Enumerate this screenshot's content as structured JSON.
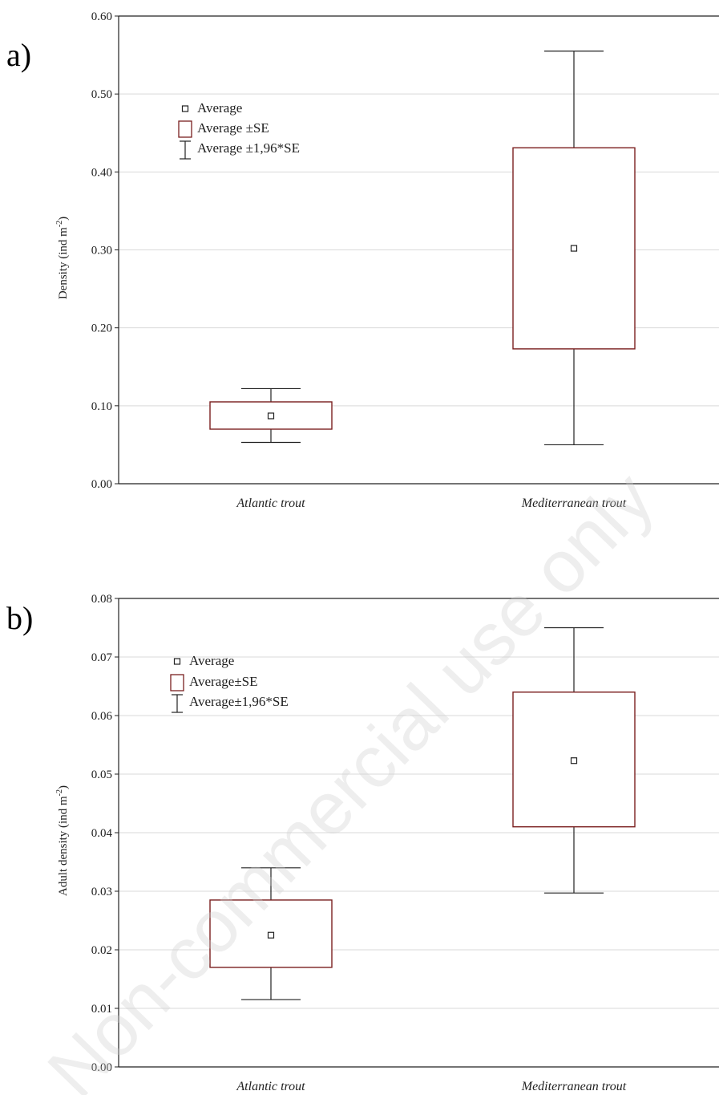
{
  "watermark": "Non-commercial use only",
  "chart_data": [
    {
      "type": "box",
      "panel_label": "a)",
      "ylabel": "Density (ind m",
      "ylabel_sup": "-2",
      "ylabel_end": ")",
      "ylim": [
        0,
        0.6
      ],
      "yticks": [
        "0.00",
        "0.10",
        "0.20",
        "0.30",
        "0.40",
        "0.50",
        "0.60"
      ],
      "ytick_values": [
        0,
        0.1,
        0.2,
        0.3,
        0.4,
        0.5,
        0.6
      ],
      "grid": true,
      "categories": [
        "Atlantic trout",
        "Mediterranean trout"
      ],
      "series": [
        {
          "category": "Atlantic trout",
          "average": 0.087,
          "se_low": 0.07,
          "se_high": 0.105,
          "ci_low": 0.053,
          "ci_high": 0.122
        },
        {
          "category": "Mediterranean trout",
          "average": 0.302,
          "se_low": 0.173,
          "se_high": 0.431,
          "ci_low": 0.05,
          "ci_high": 0.555
        }
      ],
      "legend": {
        "placement": "top-left",
        "average": "Average",
        "se": "Average ±SE",
        "ci": "Average ±1,96*SE"
      },
      "colors": {
        "box": "#7a1f1f",
        "whisker": "#222222",
        "grid": "#d9d9d9"
      }
    },
    {
      "type": "box",
      "panel_label": "b)",
      "ylabel": "Adult density (ind m",
      "ylabel_sup": "-2",
      "ylabel_end": ")",
      "ylim": [
        0,
        0.08
      ],
      "yticks": [
        "0.00",
        "0.01",
        "0.02",
        "0.03",
        "0.04",
        "0.05",
        "0.06",
        "0.07",
        "0.08"
      ],
      "ytick_values": [
        0,
        0.01,
        0.02,
        0.03,
        0.04,
        0.05,
        0.06,
        0.07,
        0.08
      ],
      "grid": true,
      "categories": [
        "Atlantic trout",
        "Mediterranean trout"
      ],
      "series": [
        {
          "category": "Atlantic trout",
          "average": 0.0225,
          "se_low": 0.017,
          "se_high": 0.0285,
          "ci_low": 0.0115,
          "ci_high": 0.034
        },
        {
          "category": "Mediterranean trout",
          "average": 0.0523,
          "se_low": 0.041,
          "se_high": 0.064,
          "ci_low": 0.0297,
          "ci_high": 0.075
        }
      ],
      "legend": {
        "placement": "top-left",
        "average": "Average",
        "se": "Average±SE",
        "ci": "Average±1,96*SE"
      },
      "colors": {
        "box": "#7a1f1f",
        "whisker": "#222222",
        "grid": "#d9d9d9"
      }
    }
  ]
}
